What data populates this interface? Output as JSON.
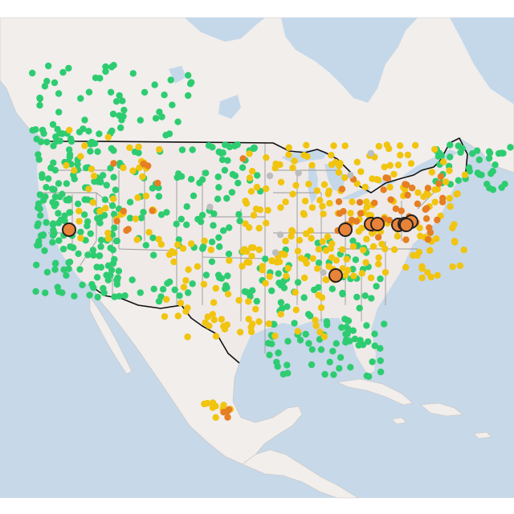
{
  "map": {
    "colors": {
      "ocean": "#c7d8e8",
      "land": "#f0ebea",
      "good": "#2ecc71",
      "moderate": "#f1c40f",
      "sensitive": "#e67e22",
      "offline": "#bdbdbd",
      "hotspot_fill": "#e8843a",
      "hotspot_stroke": "#222222"
    },
    "point_groups": [
      {
        "category": "good",
        "count": 520
      },
      {
        "category": "moderate",
        "count": 330
      },
      {
        "category": "sensitive",
        "count": 60
      },
      {
        "category": "offline",
        "count": 8
      }
    ],
    "hotspots_count": 9
  }
}
